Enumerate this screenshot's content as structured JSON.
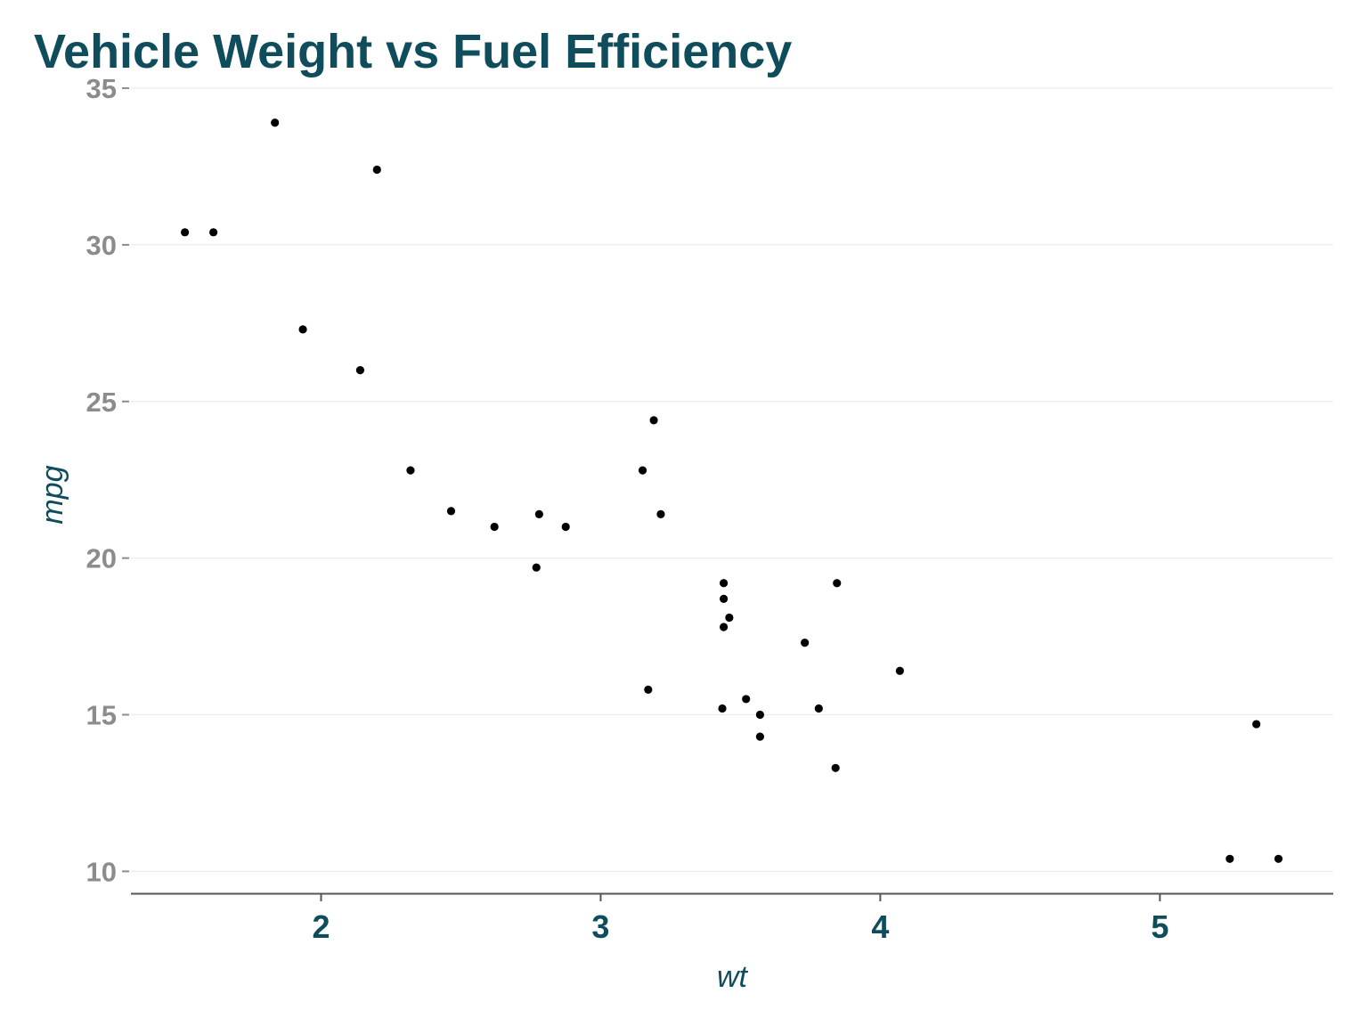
{
  "colors": {
    "title": "#0f4c5c",
    "axis_title": "#0f4c5c",
    "x_tick_label": "#0f4c5c",
    "y_tick_label": "#8c8c8c",
    "gridline": "#ececec",
    "axis_line": "#555555",
    "point": "#000000"
  },
  "chart_data": {
    "type": "scatter",
    "title": "Vehicle Weight vs Fuel Efficiency",
    "xlabel": "wt",
    "ylabel": "mpg",
    "xlim": [
      1.32,
      5.62
    ],
    "ylim": [
      9.3,
      35.2
    ],
    "xticks": [
      2,
      3,
      4,
      5
    ],
    "xtick_labels": [
      "2",
      "3",
      "4",
      "5"
    ],
    "yticks": [
      10,
      15,
      20,
      25,
      30,
      35
    ],
    "ytick_labels": [
      "10",
      "15",
      "20",
      "25",
      "30",
      "35"
    ],
    "grid": {
      "horizontal": true,
      "vertical": false
    },
    "legend": "none",
    "points": [
      {
        "x": 2.62,
        "y": 21.0
      },
      {
        "x": 2.875,
        "y": 21.0
      },
      {
        "x": 2.32,
        "y": 22.8
      },
      {
        "x": 3.215,
        "y": 21.4
      },
      {
        "x": 3.44,
        "y": 18.7
      },
      {
        "x": 3.46,
        "y": 18.1
      },
      {
        "x": 3.57,
        "y": 14.3
      },
      {
        "x": 3.19,
        "y": 24.4
      },
      {
        "x": 3.15,
        "y": 22.8
      },
      {
        "x": 3.44,
        "y": 19.2
      },
      {
        "x": 3.44,
        "y": 17.8
      },
      {
        "x": 4.07,
        "y": 16.4
      },
      {
        "x": 3.73,
        "y": 17.3
      },
      {
        "x": 3.78,
        "y": 15.2
      },
      {
        "x": 5.25,
        "y": 10.4
      },
      {
        "x": 5.424,
        "y": 10.4
      },
      {
        "x": 5.345,
        "y": 14.7
      },
      {
        "x": 2.2,
        "y": 32.4
      },
      {
        "x": 1.615,
        "y": 30.4
      },
      {
        "x": 1.835,
        "y": 33.9
      },
      {
        "x": 2.465,
        "y": 21.5
      },
      {
        "x": 3.52,
        "y": 15.5
      },
      {
        "x": 3.435,
        "y": 15.2
      },
      {
        "x": 3.84,
        "y": 13.3
      },
      {
        "x": 3.845,
        "y": 19.2
      },
      {
        "x": 1.935,
        "y": 27.3
      },
      {
        "x": 2.14,
        "y": 26.0
      },
      {
        "x": 1.513,
        "y": 30.4
      },
      {
        "x": 3.17,
        "y": 15.8
      },
      {
        "x": 2.77,
        "y": 19.7
      },
      {
        "x": 3.57,
        "y": 15.0
      },
      {
        "x": 2.78,
        "y": 21.4
      }
    ]
  }
}
